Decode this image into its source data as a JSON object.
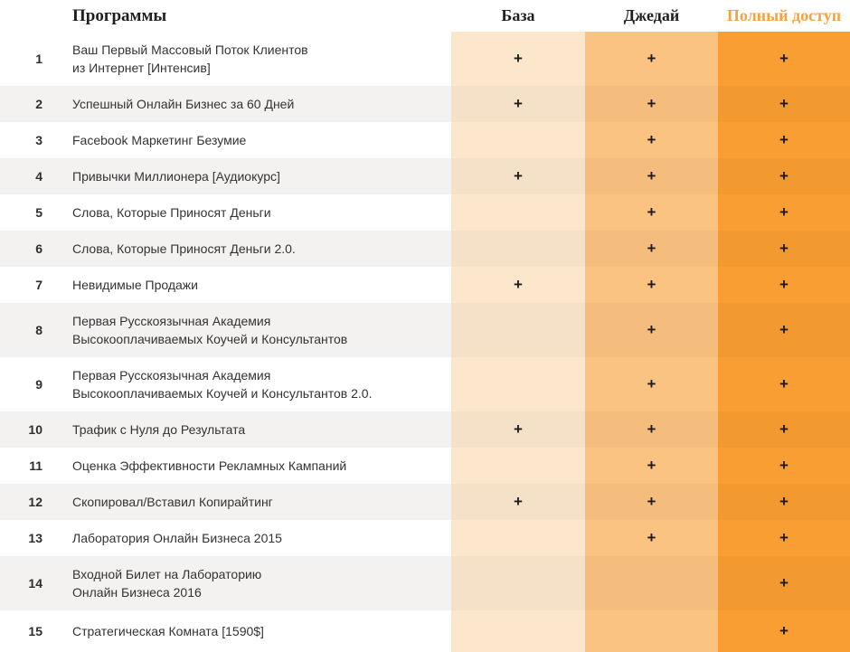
{
  "header": {
    "programs_label": "Программы",
    "columns": [
      {
        "key": "base",
        "label": "База"
      },
      {
        "key": "jedi",
        "label": "Джедай"
      },
      {
        "key": "full",
        "label": "Полный доступ"
      }
    ]
  },
  "plus_glyph": "+",
  "colors": {
    "accent_header": "#F9A23B",
    "col_base_bg": "#FCE7CC",
    "col_base_bg_striped": "#F5E1C8",
    "col_jedi_bg": "#FBC382",
    "col_jedi_bg_striped": "#F4BD7E",
    "col_full_bg": "#F99E33",
    "col_full_bg_striped": "#F2992F",
    "zebra_row_bg": "#F4F2F1",
    "text": "#333333"
  },
  "rows": [
    {
      "num": "1",
      "name": "Ваш Первый Массовый Поток Клиентов\nиз Интернет [Интенсив]",
      "base": true,
      "jedi": true,
      "full": true
    },
    {
      "num": "2",
      "name": "Успешный Онлайн Бизнес за 60 Дней",
      "base": true,
      "jedi": true,
      "full": true
    },
    {
      "num": "3",
      "name": "Facebook Маркетинг Безумие",
      "base": false,
      "jedi": true,
      "full": true
    },
    {
      "num": "4",
      "name": "Привычки Миллионера [Аудиокурс]",
      "base": true,
      "jedi": true,
      "full": true
    },
    {
      "num": "5",
      "name": "Слова, Которые Приносят Деньги",
      "base": false,
      "jedi": true,
      "full": true
    },
    {
      "num": "6",
      "name": "Слова, Которые Приносят Деньги 2.0.",
      "base": false,
      "jedi": true,
      "full": true
    },
    {
      "num": "7",
      "name": "Невидимые Продажи",
      "base": true,
      "jedi": true,
      "full": true
    },
    {
      "num": "8",
      "name": "Первая Русскоязычная Академия\nВысокооплачиваемых Коучей и Консультантов",
      "base": false,
      "jedi": true,
      "full": true
    },
    {
      "num": "9",
      "name": "Первая Русскоязычная Академия\nВысокооплачиваемых Коучей и Консультантов 2.0.",
      "base": false,
      "jedi": true,
      "full": true
    },
    {
      "num": "10",
      "name": "Трафик с Нуля до Результата",
      "base": true,
      "jedi": true,
      "full": true
    },
    {
      "num": "11",
      "name": "Оценка Эффективности Рекламных Кампаний",
      "base": false,
      "jedi": true,
      "full": true
    },
    {
      "num": "12",
      "name": "Скопировал/Вставил Копирайтинг",
      "base": true,
      "jedi": true,
      "full": true
    },
    {
      "num": "13",
      "name": "Лаборатория Онлайн Бизнеса 2015",
      "base": false,
      "jedi": true,
      "full": true
    },
    {
      "num": "14",
      "name": "Входной Билет на Лабораторию\nОнлайн Бизнеса 2016",
      "base": false,
      "jedi": false,
      "full": true
    },
    {
      "num": "15",
      "name": "Стратегическая Комната [1590$]",
      "base": false,
      "jedi": false,
      "full": true
    }
  ]
}
